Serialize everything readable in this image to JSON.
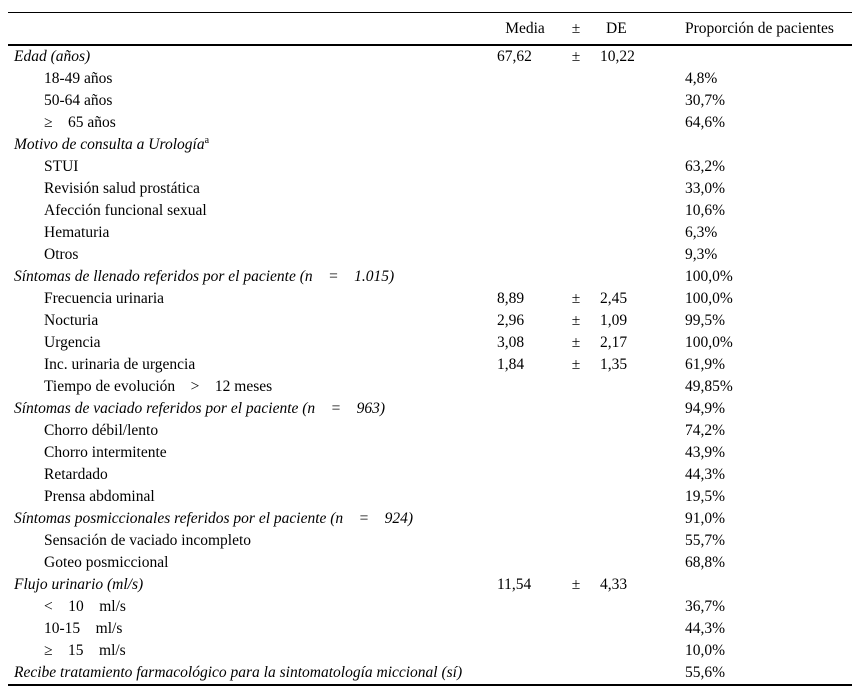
{
  "colors": {
    "text": "#000000",
    "background": "#ffffff",
    "rule": "#000000"
  },
  "table": {
    "headers": {
      "label": "",
      "media": "Media",
      "pm": "±",
      "de": "DE",
      "prop": "Proporción de pacientes"
    },
    "rows": [
      {
        "label": "Edad (años)",
        "italic": true,
        "indent": false,
        "media": "67,62",
        "pm": "±",
        "de": "10,22"
      },
      {
        "label": "18-49 años",
        "italic": false,
        "indent": true,
        "prop": "4,8%"
      },
      {
        "label": "50-64 años",
        "italic": false,
        "indent": true,
        "prop": "30,7%"
      },
      {
        "label": "≥    65 años",
        "italic": false,
        "indent": true,
        "prop": "64,6%"
      },
      {
        "label": "Motivo de consulta a Urología",
        "sup": "a",
        "italic": true,
        "indent": false
      },
      {
        "label": "STUI",
        "italic": false,
        "indent": true,
        "prop": "63,2%"
      },
      {
        "label": "Revisión salud prostática",
        "italic": false,
        "indent": true,
        "prop": "33,0%"
      },
      {
        "label": "Afección funcional sexual",
        "italic": false,
        "indent": true,
        "prop": "10,6%"
      },
      {
        "label": "Hematuria",
        "italic": false,
        "indent": true,
        "prop": "6,3%"
      },
      {
        "label": "Otros",
        "italic": false,
        "indent": true,
        "prop": "9,3%"
      },
      {
        "label": "Síntomas de llenado referidos por el paciente (n    =    1.015)",
        "italic": true,
        "indent": false,
        "prop": "100,0%"
      },
      {
        "label": "Frecuencia urinaria",
        "italic": false,
        "indent": true,
        "media": "8,89",
        "pm": "±",
        "de": "2,45",
        "prop": "100,0%"
      },
      {
        "label": "Nocturia",
        "italic": false,
        "indent": true,
        "media": "2,96",
        "pm": "±",
        "de": "1,09",
        "prop": "99,5%"
      },
      {
        "label": "Urgencia",
        "italic": false,
        "indent": true,
        "media": "3,08",
        "pm": "±",
        "de": "2,17",
        "prop": "100,0%"
      },
      {
        "label": "Inc. urinaria de urgencia",
        "italic": false,
        "indent": true,
        "media": "1,84",
        "pm": "±",
        "de": "1,35",
        "prop": "61,9%"
      },
      {
        "label": "Tiempo de evolución    >    12 meses",
        "italic": false,
        "indent": true,
        "prop": "49,85%"
      },
      {
        "label": "Síntomas de vaciado referidos por el paciente (n    =    963)",
        "italic": true,
        "indent": false,
        "prop": "94,9%"
      },
      {
        "label": "Chorro débil/lento",
        "italic": false,
        "indent": true,
        "prop": "74,2%"
      },
      {
        "label": "Chorro intermitente",
        "italic": false,
        "indent": true,
        "prop": "43,9%"
      },
      {
        "label": "Retardado",
        "italic": false,
        "indent": true,
        "prop": "44,3%"
      },
      {
        "label": "Prensa abdominal",
        "italic": false,
        "indent": true,
        "prop": "19,5%"
      },
      {
        "label": "Síntomas posmiccionales referidos por el paciente (n    =    924)",
        "italic": true,
        "indent": false,
        "prop": "91,0%"
      },
      {
        "label": "Sensación de vaciado incompleto",
        "italic": false,
        "indent": true,
        "prop": "55,7%"
      },
      {
        "label": "Goteo posmiccional",
        "italic": false,
        "indent": true,
        "prop": "68,8%"
      },
      {
        "label": "Flujo urinario (ml/s)",
        "italic": true,
        "indent": false,
        "media": "11,54",
        "pm": "±",
        "de": "4,33"
      },
      {
        "label": "<    10    ml/s",
        "italic": false,
        "indent": true,
        "prop": "36,7%"
      },
      {
        "label": "10-15    ml/s",
        "italic": false,
        "indent": true,
        "prop": "44,3%"
      },
      {
        "label": "≥    15    ml/s",
        "italic": false,
        "indent": true,
        "prop": "10,0%"
      },
      {
        "label": "Recibe tratamiento farmacológico para la sintomatología miccional (sí)",
        "italic": true,
        "indent": false,
        "prop": "55,6%"
      }
    ]
  }
}
